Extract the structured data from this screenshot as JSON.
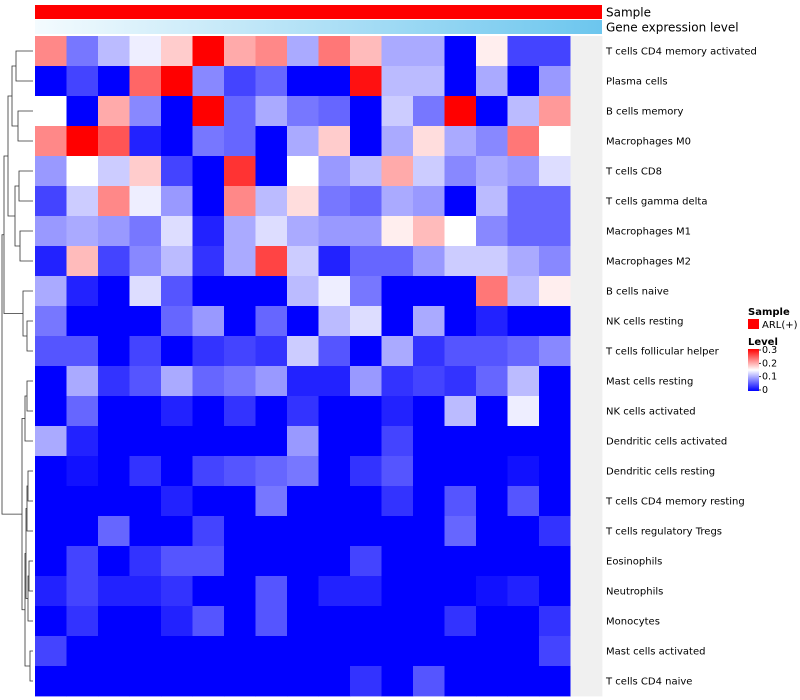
{
  "chart_data": {
    "type": "heatmap",
    "title": "",
    "annotation_tracks": [
      {
        "name": "Sample",
        "color": "#ff0000"
      },
      {
        "name": "Gene expression level",
        "gradient": [
          "#f4fbfe",
          "#6cc6ee"
        ]
      }
    ],
    "rows": [
      "T cells CD4 memory activated",
      "Plasma cells",
      "B cells memory",
      "Macrophages M0",
      "T cells CD8",
      "T cells gamma delta",
      "Macrophages M1",
      "Macrophages M2",
      "B cells naive",
      "NK cells resting",
      "T cells follicular helper",
      "Mast cells resting",
      "NK cells activated",
      "Dendritic cells activated",
      "Dendritic cells resting",
      "T cells CD4 memory resting",
      "T cells regulatory  Tregs",
      "Eosinophils",
      "Neutrophils",
      "Monocytes",
      "Mast cells activated",
      "T cells CD4 naive"
    ],
    "n_columns": 18,
    "values": [
      [
        0.22,
        0.07,
        0.11,
        0.14,
        0.18,
        0.3,
        0.2,
        0.22,
        0.1,
        0.23,
        0.19,
        0.1,
        0.1,
        0.0,
        0.16,
        0.04,
        0.04,
        null
      ],
      [
        0.0,
        0.04,
        0.0,
        0.24,
        0.3,
        0.08,
        0.04,
        0.06,
        0.0,
        0.0,
        0.29,
        0.11,
        0.11,
        0.0,
        0.1,
        0.0,
        0.09,
        null
      ],
      [
        0.15,
        0.0,
        0.2,
        0.08,
        0.0,
        0.3,
        0.06,
        0.1,
        0.07,
        0.06,
        0.0,
        0.12,
        0.07,
        0.3,
        0.0,
        0.11,
        0.21,
        null
      ],
      [
        0.22,
        0.3,
        0.25,
        0.02,
        0.0,
        0.07,
        0.06,
        0.0,
        0.1,
        0.18,
        0.0,
        0.1,
        0.17,
        0.1,
        0.08,
        0.23,
        0.15,
        null
      ],
      [
        0.09,
        0.15,
        0.12,
        0.18,
        0.04,
        0.0,
        0.27,
        0.0,
        0.15,
        0.09,
        0.11,
        0.2,
        0.12,
        0.08,
        0.1,
        0.09,
        0.13,
        null
      ],
      [
        0.04,
        0.12,
        0.22,
        0.14,
        0.09,
        0.0,
        0.22,
        0.11,
        0.17,
        0.07,
        0.06,
        0.1,
        0.09,
        0.0,
        0.11,
        0.06,
        0.06,
        null
      ],
      [
        0.09,
        0.1,
        0.09,
        0.07,
        0.13,
        0.02,
        0.1,
        0.13,
        0.1,
        0.09,
        0.09,
        0.16,
        0.19,
        0.15,
        0.08,
        0.06,
        0.06,
        null
      ],
      [
        0.02,
        0.19,
        0.04,
        0.08,
        0.11,
        0.03,
        0.1,
        0.26,
        0.12,
        0.02,
        0.06,
        0.06,
        0.09,
        0.12,
        0.12,
        0.1,
        0.08,
        null
      ],
      [
        0.1,
        0.02,
        0.0,
        0.13,
        0.05,
        0.0,
        0.0,
        0.0,
        0.11,
        0.14,
        0.07,
        0.0,
        0.0,
        0.0,
        0.23,
        0.11,
        0.16,
        null
      ],
      [
        0.07,
        0.0,
        0.0,
        0.0,
        0.06,
        0.09,
        0.0,
        0.06,
        0.0,
        0.11,
        0.13,
        0.0,
        0.1,
        0.0,
        0.02,
        0.0,
        0.0,
        null
      ],
      [
        0.05,
        0.05,
        0.0,
        0.04,
        0.0,
        0.03,
        0.04,
        0.03,
        0.12,
        0.05,
        0.0,
        0.1,
        0.03,
        0.05,
        0.05,
        0.06,
        0.08,
        null
      ],
      [
        0.0,
        0.1,
        0.03,
        0.05,
        0.1,
        0.06,
        0.07,
        0.09,
        0.02,
        0.02,
        0.09,
        0.03,
        0.04,
        0.03,
        0.06,
        0.11,
        0.0,
        null
      ],
      [
        0.0,
        0.06,
        0.0,
        0.0,
        0.02,
        0.0,
        0.03,
        0.0,
        0.03,
        0.0,
        0.0,
        0.02,
        0.0,
        0.11,
        0.0,
        0.14,
        0.0,
        null
      ],
      [
        0.1,
        0.02,
        0.0,
        0.0,
        0.0,
        0.0,
        0.0,
        0.0,
        0.09,
        0.0,
        0.0,
        0.04,
        0.0,
        0.0,
        0.0,
        0.0,
        0.0,
        null
      ],
      [
        0.0,
        0.01,
        0.0,
        0.03,
        0.0,
        0.04,
        0.05,
        0.06,
        0.07,
        0.0,
        0.03,
        0.05,
        0.0,
        0.0,
        0.0,
        0.01,
        0.0,
        null
      ],
      [
        0.0,
        0.0,
        0.0,
        0.0,
        0.02,
        0.0,
        0.0,
        0.07,
        0.0,
        0.0,
        0.0,
        0.03,
        0.0,
        0.05,
        0.0,
        0.05,
        0.0,
        null
      ],
      [
        0.0,
        0.0,
        0.06,
        0.0,
        0.0,
        0.04,
        0.0,
        0.0,
        0.0,
        0.0,
        0.0,
        0.0,
        0.0,
        0.06,
        0.0,
        0.0,
        0.03,
        null
      ],
      [
        0.0,
        0.04,
        0.0,
        0.03,
        0.05,
        0.05,
        0.0,
        0.0,
        0.0,
        0.0,
        0.04,
        0.0,
        0.0,
        0.0,
        0.0,
        0.0,
        0.0,
        null
      ],
      [
        0.02,
        0.04,
        0.02,
        0.02,
        0.03,
        0.0,
        0.0,
        0.05,
        0.0,
        0.02,
        0.02,
        0.0,
        0.0,
        0.0,
        0.01,
        0.02,
        0.0,
        null
      ],
      [
        0.0,
        0.03,
        0.0,
        0.0,
        0.02,
        0.05,
        0.0,
        0.05,
        0.0,
        0.0,
        0.0,
        0.0,
        0.0,
        0.03,
        0.0,
        0.0,
        0.03,
        null
      ],
      [
        0.04,
        0.0,
        0.0,
        0.0,
        0.0,
        0.0,
        0.0,
        0.0,
        0.0,
        0.0,
        0.0,
        0.0,
        0.0,
        0.0,
        0.0,
        0.0,
        0.04,
        null
      ],
      [
        0.0,
        0.0,
        0.0,
        0.0,
        0.0,
        0.0,
        0.0,
        0.0,
        0.0,
        0.0,
        0.03,
        0.0,
        0.05,
        0.0,
        0.0,
        0.0,
        0.0,
        null
      ]
    ],
    "color_scale": {
      "min": 0,
      "max": 0.3,
      "stops": [
        {
          "value": 0,
          "color": "#0000ff"
        },
        {
          "value": 0.15,
          "color": "#ffffff"
        },
        {
          "value": 0.3,
          "color": "#ff0000"
        }
      ]
    },
    "legend": {
      "placement": "right",
      "sample_title": "Sample",
      "sample_label": "ARL(+)",
      "sample_color": "#ff0000",
      "level_title": "Level",
      "ticks": [
        "0.3",
        "0.2",
        "0.1",
        "0"
      ]
    },
    "row_dendrogram": true
  }
}
